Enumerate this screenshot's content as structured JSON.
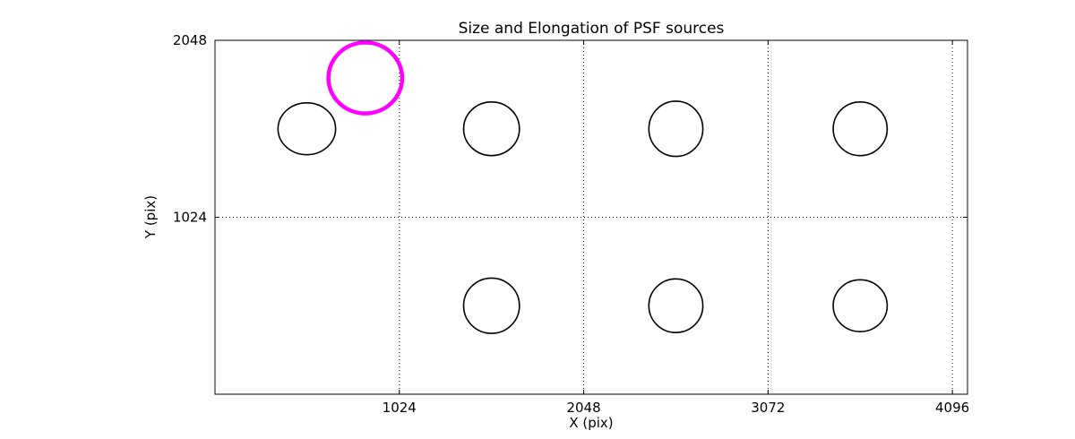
{
  "chart_data": {
    "type": "scatter",
    "title": "Size and Elongation of PSF sources",
    "xlabel": "X (pix)",
    "ylabel": "Y (pix)",
    "xlim": [
      0,
      4180
    ],
    "ylim": [
      0,
      2048
    ],
    "xticks": [
      1024,
      2048,
      3072,
      4096
    ],
    "yticks": [
      1024,
      2048
    ],
    "grid": "dotted",
    "legend": "none",
    "axis_color": "#000000",
    "grid_color": "#000000",
    "highlight_color": "#ff00ff",
    "source_color": "#000000",
    "ellipses": [
      {
        "x": 510,
        "y": 1536,
        "rx": 160,
        "ry": 150,
        "color": "#000000",
        "lw": 1.6,
        "role": "psf-source"
      },
      {
        "x": 1536,
        "y": 1536,
        "rx": 155,
        "ry": 155,
        "color": "#000000",
        "lw": 1.6,
        "role": "psf-source"
      },
      {
        "x": 2560,
        "y": 1536,
        "rx": 150,
        "ry": 160,
        "color": "#000000",
        "lw": 1.6,
        "role": "psf-source"
      },
      {
        "x": 3584,
        "y": 1536,
        "rx": 150,
        "ry": 155,
        "color": "#000000",
        "lw": 1.6,
        "role": "psf-source"
      },
      {
        "x": 1536,
        "y": 512,
        "rx": 155,
        "ry": 160,
        "color": "#000000",
        "lw": 1.6,
        "role": "psf-source"
      },
      {
        "x": 2560,
        "y": 512,
        "rx": 150,
        "ry": 155,
        "color": "#000000",
        "lw": 1.6,
        "role": "psf-source"
      },
      {
        "x": 3584,
        "y": 512,
        "rx": 150,
        "ry": 150,
        "color": "#000000",
        "lw": 1.6,
        "role": "psf-source"
      },
      {
        "x": 835,
        "y": 1830,
        "rx": 205,
        "ry": 205,
        "color": "#ff00ff",
        "lw": 4.5,
        "role": "psf-source-highlighted"
      }
    ]
  }
}
